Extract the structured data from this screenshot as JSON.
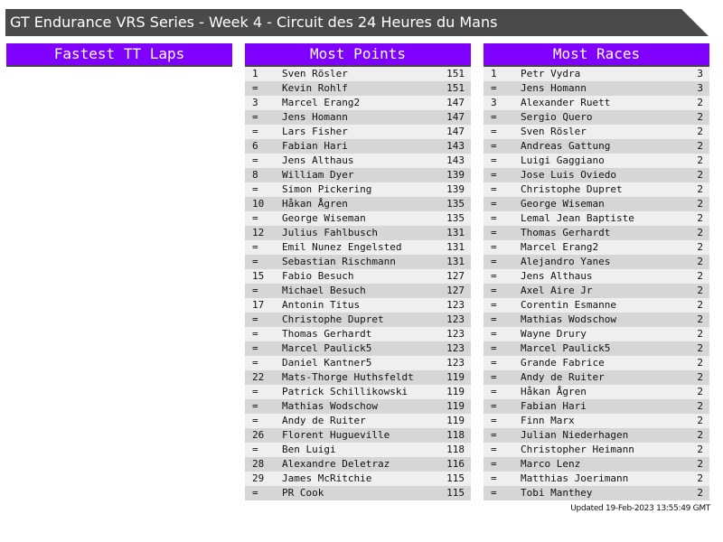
{
  "title": "GT Endurance VRS Series - Week 4 - Circuit des 24 Heures du Mans",
  "colors": {
    "accent": "#8000ff",
    "titlebar": "#4a4a4a"
  },
  "panels": [
    {
      "heading": "Fastest TT Laps",
      "rows": []
    },
    {
      "heading": "Most Points",
      "rows": [
        [
          "1",
          "Sven Rösler",
          "151"
        ],
        [
          "=",
          "Kevin Rohlf",
          "151"
        ],
        [
          "3",
          "Marcel Erang2",
          "147"
        ],
        [
          "=",
          "Jens Homann",
          "147"
        ],
        [
          "=",
          "Lars Fisher",
          "147"
        ],
        [
          "6",
          "Fabian Hari",
          "143"
        ],
        [
          "=",
          "Jens Althaus",
          "143"
        ],
        [
          "8",
          "William Dyer",
          "139"
        ],
        [
          "=",
          "Simon Pickering",
          "139"
        ],
        [
          "10",
          "Håkan Ågren",
          "135"
        ],
        [
          "=",
          "George Wiseman",
          "135"
        ],
        [
          "12",
          "Julius Fahlbusch",
          "131"
        ],
        [
          "=",
          "Emil Nunez Engelsted",
          "131"
        ],
        [
          "=",
          "Sebastian Rischmann",
          "131"
        ],
        [
          "15",
          "Fabio Besuch",
          "127"
        ],
        [
          "=",
          "Michael Besuch",
          "127"
        ],
        [
          "17",
          "Antonin Titus",
          "123"
        ],
        [
          "=",
          "Christophe Dupret",
          "123"
        ],
        [
          "=",
          "Thomas Gerhardt",
          "123"
        ],
        [
          "=",
          "Marcel Paulick5",
          "123"
        ],
        [
          "=",
          "Daniel Kantner5",
          "123"
        ],
        [
          "22",
          "Mats-Thorge Huthsfeldt",
          "119"
        ],
        [
          "=",
          "Patrick Schillikowski",
          "119"
        ],
        [
          "=",
          "Mathias Wodschow",
          "119"
        ],
        [
          "=",
          "Andy de Ruiter",
          "119"
        ],
        [
          "26",
          "Florent Hugueville",
          "118"
        ],
        [
          "=",
          "Ben Luigi",
          "118"
        ],
        [
          "28",
          "Alexandre Deletraz",
          "116"
        ],
        [
          "29",
          "James McRitchie",
          "115"
        ],
        [
          "=",
          "PR Cook",
          "115"
        ]
      ]
    },
    {
      "heading": "Most Races",
      "rows": [
        [
          "1",
          "Petr Vydra",
          "3"
        ],
        [
          "=",
          "Jens Homann",
          "3"
        ],
        [
          "3",
          "Alexander Ruett",
          "2"
        ],
        [
          "=",
          "Sergio Quero",
          "2"
        ],
        [
          "=",
          "Sven Rösler",
          "2"
        ],
        [
          "=",
          "Andreas Gattung",
          "2"
        ],
        [
          "=",
          "Luigi Gaggiano",
          "2"
        ],
        [
          "=",
          "Jose Luis Oviedo",
          "2"
        ],
        [
          "=",
          "Christophe Dupret",
          "2"
        ],
        [
          "=",
          "George Wiseman",
          "2"
        ],
        [
          "=",
          "Lemal Jean Baptiste",
          "2"
        ],
        [
          "=",
          "Thomas Gerhardt",
          "2"
        ],
        [
          "=",
          "Marcel Erang2",
          "2"
        ],
        [
          "=",
          "Alejandro Yanes",
          "2"
        ],
        [
          "=",
          "Jens Althaus",
          "2"
        ],
        [
          "=",
          "Axel Aire Jr",
          "2"
        ],
        [
          "=",
          "Corentin Esmanne",
          "2"
        ],
        [
          "=",
          "Mathias Wodschow",
          "2"
        ],
        [
          "=",
          "Wayne Drury",
          "2"
        ],
        [
          "=",
          "Marcel Paulick5",
          "2"
        ],
        [
          "=",
          "Grande Fabrice",
          "2"
        ],
        [
          "=",
          "Andy de Ruiter",
          "2"
        ],
        [
          "=",
          "Håkan Ågren",
          "2"
        ],
        [
          "=",
          "Fabian Hari",
          "2"
        ],
        [
          "=",
          "Finn Marx",
          "2"
        ],
        [
          "=",
          "Julian Niederhagen",
          "2"
        ],
        [
          "=",
          "Christopher Heimann",
          "2"
        ],
        [
          "=",
          "Marco Lenz",
          "2"
        ],
        [
          "=",
          "Matthias Joerimann",
          "2"
        ],
        [
          "=",
          "Tobi Manthey",
          "2"
        ]
      ]
    }
  ],
  "updated": "Updated 19-Feb-2023 13:55:49 GMT"
}
